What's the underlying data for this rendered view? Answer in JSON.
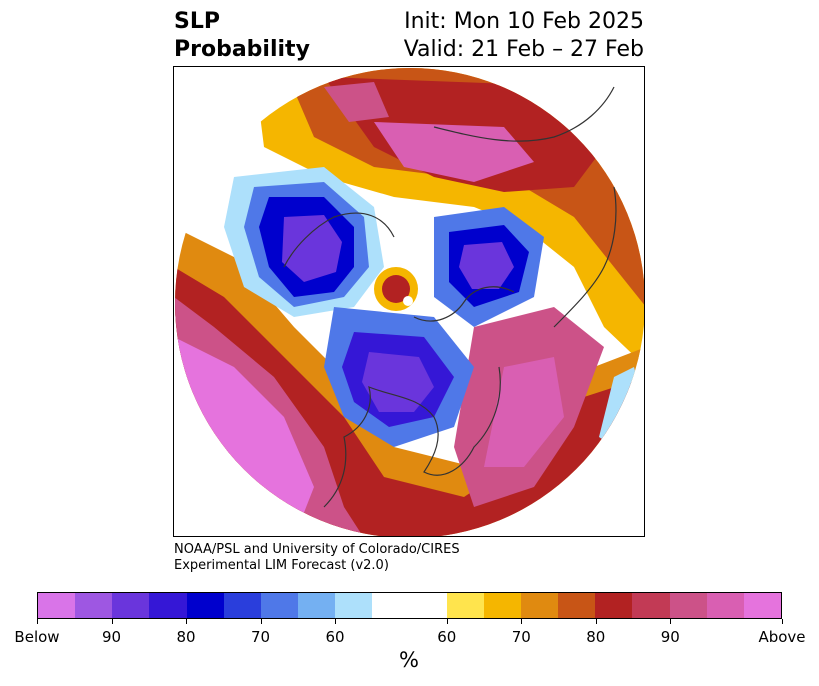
{
  "header": {
    "title_line1": "SLP",
    "title_line2": "Probability",
    "init_label": "Init: Mon 10 Feb 2025",
    "valid_label": "Valid: 21 Feb – 27 Feb"
  },
  "credit": {
    "line1": "NOAA/PSL and University of Colorado/CIRES",
    "line2": "Experimental LIM Forecast (v2.0)"
  },
  "colorbar": {
    "colors": [
      "#d974e8",
      "#9e57e2",
      "#6a35dc",
      "#3517d6",
      "#0000cd",
      "#2a3edc",
      "#4f78e8",
      "#74b0f2",
      "#ade0fb",
      "#ffffff",
      "#ffe44d",
      "#f5b600",
      "#e08a10",
      "#c85516",
      "#b22222",
      "#c23a55",
      "#cc5288",
      "#d95fb2",
      "#e573dd"
    ],
    "tick_labels": [
      "Below",
      "90",
      "80",
      "70",
      "60",
      "60",
      "70",
      "80",
      "90",
      "Above"
    ],
    "units": "%"
  },
  "map": {
    "projection": "polar-stereographic",
    "colors": {
      "below_deep": "#0000cd",
      "below_mid": "#6a35dc",
      "below_light": "#ade0fb",
      "above_light": "#ffe44d",
      "above_mid": "#b22222",
      "above_deep": "#e573dd"
    }
  }
}
